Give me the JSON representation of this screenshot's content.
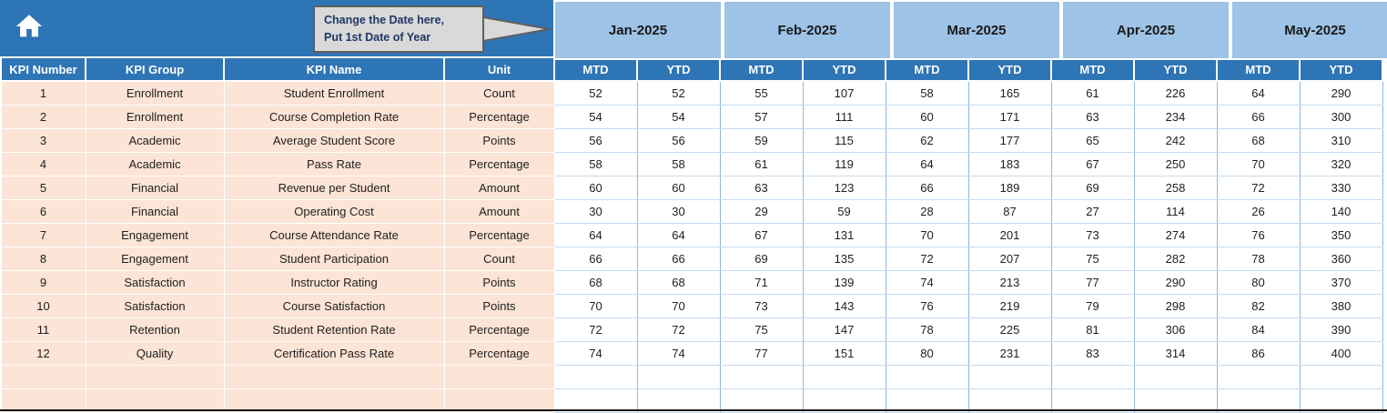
{
  "callout": {
    "line1": "Change the Date here,",
    "line2": "Put 1st Date of Year"
  },
  "icons": {
    "home_icon": "⌂",
    "callout_pointer_icon": "▶"
  },
  "colors": {
    "header_blue": "#2e75b6",
    "month_band_blue": "#9dc3e6",
    "row_peach": "#fce4d6",
    "grid_line_blue": "#8fb8e0",
    "callout_fill": "#d9d9d9",
    "callout_text": "#1f3864",
    "header_text": "#ffffff"
  },
  "table": {
    "months": [
      "Jan-2025",
      "Feb-2025",
      "Mar-2025",
      "Apr-2025",
      "May-2025"
    ],
    "subheaders": [
      "MTD",
      "YTD"
    ],
    "left_headers": [
      "KPI Number",
      "KPI Group",
      "KPI Name",
      "Unit"
    ],
    "empty_row_count": 2,
    "rows": [
      {
        "num": 1,
        "group": "Enrollment",
        "name": "Student Enrollment",
        "unit": "Count",
        "values": [
          52,
          52,
          55,
          107,
          58,
          165,
          61,
          226,
          64,
          290
        ]
      },
      {
        "num": 2,
        "group": "Enrollment",
        "name": "Course Completion Rate",
        "unit": "Percentage",
        "values": [
          54,
          54,
          57,
          111,
          60,
          171,
          63,
          234,
          66,
          300
        ]
      },
      {
        "num": 3,
        "group": "Academic",
        "name": "Average Student Score",
        "unit": "Points",
        "values": [
          56,
          56,
          59,
          115,
          62,
          177,
          65,
          242,
          68,
          310
        ]
      },
      {
        "num": 4,
        "group": "Academic",
        "name": "Pass Rate",
        "unit": "Percentage",
        "values": [
          58,
          58,
          61,
          119,
          64,
          183,
          67,
          250,
          70,
          320
        ]
      },
      {
        "num": 5,
        "group": "Financial",
        "name": "Revenue per Student",
        "unit": "Amount",
        "values": [
          60,
          60,
          63,
          123,
          66,
          189,
          69,
          258,
          72,
          330
        ]
      },
      {
        "num": 6,
        "group": "Financial",
        "name": "Operating Cost",
        "unit": "Amount",
        "values": [
          30,
          30,
          29,
          59,
          28,
          87,
          27,
          114,
          26,
          140
        ]
      },
      {
        "num": 7,
        "group": "Engagement",
        "name": "Course Attendance Rate",
        "unit": "Percentage",
        "values": [
          64,
          64,
          67,
          131,
          70,
          201,
          73,
          274,
          76,
          350
        ]
      },
      {
        "num": 8,
        "group": "Engagement",
        "name": "Student Participation",
        "unit": "Count",
        "values": [
          66,
          66,
          69,
          135,
          72,
          207,
          75,
          282,
          78,
          360
        ]
      },
      {
        "num": 9,
        "group": "Satisfaction",
        "name": "Instructor Rating",
        "unit": "Points",
        "values": [
          68,
          68,
          71,
          139,
          74,
          213,
          77,
          290,
          80,
          370
        ]
      },
      {
        "num": 10,
        "group": "Satisfaction",
        "name": "Course Satisfaction",
        "unit": "Points",
        "values": [
          70,
          70,
          73,
          143,
          76,
          219,
          79,
          298,
          82,
          380
        ]
      },
      {
        "num": 11,
        "group": "Retention",
        "name": "Student Retention Rate",
        "unit": "Percentage",
        "values": [
          72,
          72,
          75,
          147,
          78,
          225,
          81,
          306,
          84,
          390
        ]
      },
      {
        "num": 12,
        "group": "Quality",
        "name": "Certification Pass Rate",
        "unit": "Percentage",
        "values": [
          74,
          74,
          77,
          151,
          80,
          231,
          83,
          314,
          86,
          400
        ]
      }
    ]
  }
}
